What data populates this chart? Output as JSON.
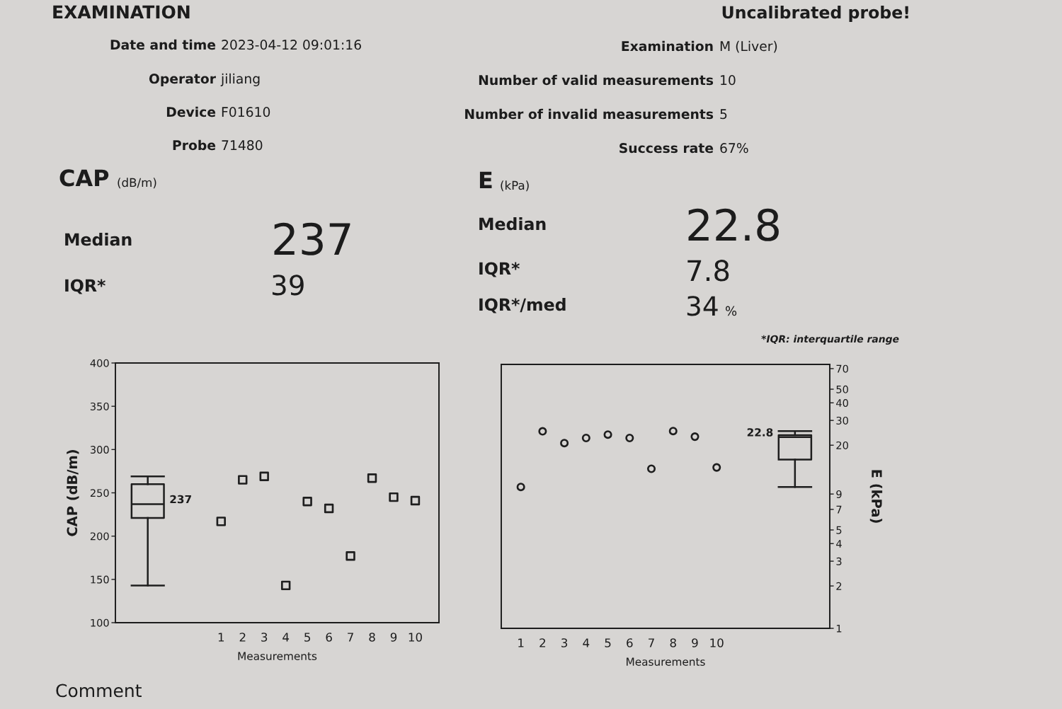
{
  "chart_data": [
    {
      "type": "other",
      "title": "EXAMINATION",
      "annotations": [
        "Uncalibrated probe!",
        "Date and time",
        "2023-04-12 09:01:16",
        "Operator",
        "jiliang",
        "Device",
        "F01610",
        "Probe",
        "71480",
        "Examination",
        "M (Liver)",
        "Number of valid measurements",
        "10",
        "Number of invalid measurements",
        "5",
        "Success rate",
        "67%",
        "CAP",
        "(dB/m)",
        "Median",
        "237",
        "IQR*",
        "39",
        "E",
        "(kPa)",
        "Median",
        "22.8",
        "IQR*",
        "7.8",
        "IQR*/med",
        "34",
        "%",
        "*IQR: interquartile range",
        "Comment"
      ]
    },
    {
      "type": "scatter",
      "xlabel": "Measurements",
      "ylabel": "CAP (dB/m)",
      "xlim": [
        -3.9,
        11.1
      ],
      "xticks": [
        1,
        2,
        3,
        4,
        5,
        6,
        7,
        8,
        9,
        10
      ],
      "ylim": [
        100,
        400
      ],
      "yticks": [
        100,
        150,
        200,
        250,
        300,
        350,
        400
      ],
      "marker": "square",
      "series": [
        {
          "type": "box",
          "color": "#1e1e1e",
          "x": [
            -2.4
          ],
          "boxes": [
            {
              "low": 143,
              "q1": 221,
              "median": 237,
              "q3": 260,
              "high": 269
            }
          ]
        },
        {
          "type": "scatter",
          "color": "#1e1e1e",
          "x": [
            1,
            2,
            3,
            4,
            5,
            6,
            7,
            8,
            9,
            10
          ],
          "values": [
            217,
            265,
            269,
            143,
            240,
            232,
            177,
            267,
            245,
            241
          ]
        }
      ],
      "annotations": [
        {
          "text": "237",
          "x": -2.4,
          "y": 237
        }
      ]
    },
    {
      "type": "scatter",
      "xlabel": "Measurements",
      "ylabel": "E (kPa)",
      "xlim": [
        0.1,
        15.2
      ],
      "xticks": [
        1,
        2,
        3,
        4,
        5,
        6,
        7,
        8,
        9,
        10
      ],
      "log": true,
      "ylim": [
        1,
        75
      ],
      "yticks": [
        1,
        2,
        3,
        4,
        5,
        7,
        9,
        20,
        30,
        40,
        50,
        70
      ],
      "marker": "circle",
      "series": [
        {
          "type": "scatter",
          "color": "#1e1e1e",
          "x": [
            1,
            2,
            3,
            4,
            5,
            6,
            7,
            8,
            9,
            10
          ],
          "values": [
            10.1,
            25.1,
            20.7,
            22.5,
            23.8,
            22.5,
            13.6,
            25.2,
            23.0,
            13.9
          ]
        },
        {
          "type": "box",
          "color": "#1e1e1e",
          "x": [
            13.6
          ],
          "boxes": [
            {
              "low": 10.1,
              "q1": 15.8,
              "median": 22.8,
              "q3": 23.6,
              "high": 25.2
            }
          ]
        }
      ],
      "annotations": [
        {
          "text": "22.8",
          "x": 13.6,
          "y": 22.8
        }
      ]
    }
  ]
}
